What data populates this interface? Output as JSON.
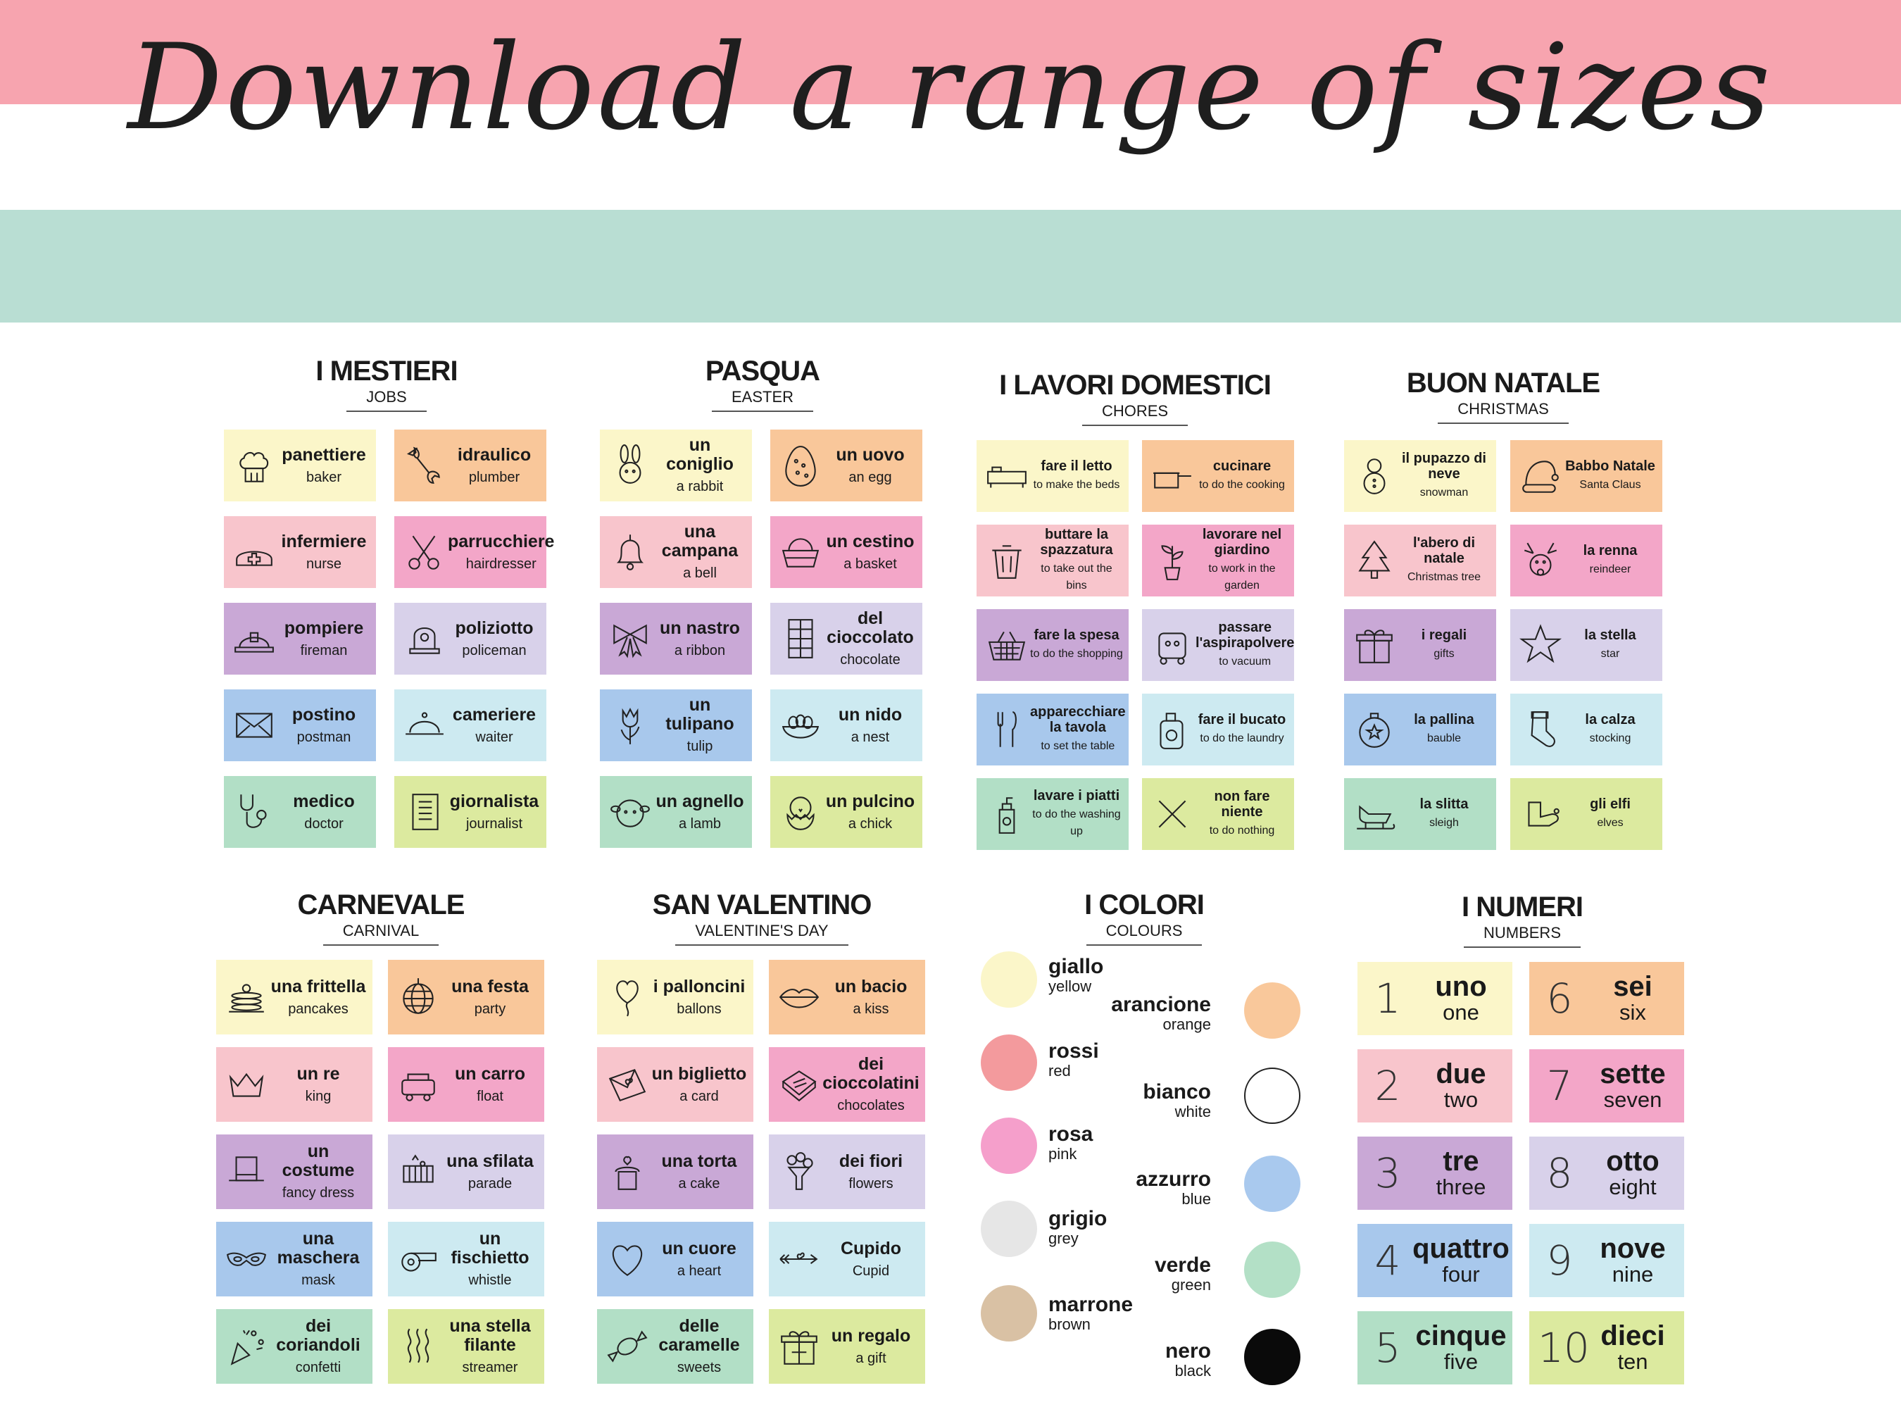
{
  "headline": "Download a range of sizes",
  "groups": {
    "mestieri": {
      "title": "I MESTIERI",
      "subtitle": "JOBS",
      "cards": [
        {
          "it": "panettiere",
          "en": "baker",
          "icon": "chef-hat-icon"
        },
        {
          "it": "idraulico",
          "en": "plumber",
          "icon": "wrench-icon"
        },
        {
          "it": "infermiere",
          "en": "nurse",
          "icon": "nurse-cap-icon"
        },
        {
          "it": "parrucchiere",
          "en": "hairdresser",
          "icon": "scissors-icon"
        },
        {
          "it": "pompiere",
          "en": "fireman",
          "icon": "fire-helmet-icon"
        },
        {
          "it": "poliziotto",
          "en": "policeman",
          "icon": "police-hat-icon"
        },
        {
          "it": "postino",
          "en": "postman",
          "icon": "envelope-icon"
        },
        {
          "it": "cameriere",
          "en": "waiter",
          "icon": "cloche-icon"
        },
        {
          "it": "medico",
          "en": "doctor",
          "icon": "stethoscope-icon"
        },
        {
          "it": "giornalista",
          "en": "journalist",
          "icon": "notebook-icon"
        }
      ]
    },
    "pasqua": {
      "title": "PASQUA",
      "subtitle": "EASTER",
      "cards": [
        {
          "it": "un coniglio",
          "en": "a rabbit",
          "icon": "rabbit-icon"
        },
        {
          "it": "un uovo",
          "en": "an egg",
          "icon": "egg-icon"
        },
        {
          "it": "una campana",
          "en": "a bell",
          "icon": "bell-icon"
        },
        {
          "it": "un cestino",
          "en": "a basket",
          "icon": "basket-icon"
        },
        {
          "it": "un nastro",
          "en": "a ribbon",
          "icon": "ribbon-icon"
        },
        {
          "it": "del cioccolato",
          "en": "chocolate",
          "icon": "chocolate-bar-icon"
        },
        {
          "it": "un tulipano",
          "en": "tulip",
          "icon": "tulip-icon"
        },
        {
          "it": "un nido",
          "en": "a nest",
          "icon": "nest-icon"
        },
        {
          "it": "un agnello",
          "en": "a lamb",
          "icon": "lamb-icon"
        },
        {
          "it": "un pulcino",
          "en": "a chick",
          "icon": "chick-icon"
        }
      ]
    },
    "lavori": {
      "title": "I LAVORI DOMESTICI",
      "subtitle": "CHORES",
      "cards": [
        {
          "it": "fare il letto",
          "en": "to make the beds",
          "icon": "bed-icon"
        },
        {
          "it": "cucinare",
          "en": "to do the cooking",
          "icon": "pan-icon"
        },
        {
          "it": "buttare la spazzatura",
          "en": "to take out the bins",
          "icon": "bin-icon"
        },
        {
          "it": "lavorare nel giardino",
          "en": "to work in the garden",
          "icon": "plant-icon"
        },
        {
          "it": "fare la spesa",
          "en": "to do the shopping",
          "icon": "shopping-basket-icon"
        },
        {
          "it": "passare l'aspirapolvere",
          "en": "to vacuum",
          "icon": "vacuum-icon"
        },
        {
          "it": "apparecchiare la tavola",
          "en": "to set the table",
          "icon": "cutlery-icon"
        },
        {
          "it": "fare il bucato",
          "en": "to do the laundry",
          "icon": "detergent-icon"
        },
        {
          "it": "lavare i piatti",
          "en": "to do the washing up",
          "icon": "soap-bottle-icon"
        },
        {
          "it": "non fare niente",
          "en": "to do nothing",
          "icon": "cross-icon"
        }
      ]
    },
    "natale": {
      "title": "BUON NATALE",
      "subtitle": "CHRISTMAS",
      "cards": [
        {
          "it": "il pupazzo di neve",
          "en": "snowman",
          "icon": "snowman-icon"
        },
        {
          "it": "Babbo Natale",
          "en": "Santa Claus",
          "icon": "santa-hat-icon"
        },
        {
          "it": "l'abero di natale",
          "en": "Christmas tree",
          "icon": "christmas-tree-icon"
        },
        {
          "it": "la renna",
          "en": "reindeer",
          "icon": "reindeer-icon"
        },
        {
          "it": "i regali",
          "en": "gifts",
          "icon": "gift-icon"
        },
        {
          "it": "la stella",
          "en": "star",
          "icon": "star-icon"
        },
        {
          "it": "la pallina",
          "en": "bauble",
          "icon": "bauble-icon"
        },
        {
          "it": "la calza",
          "en": "stocking",
          "icon": "stocking-icon"
        },
        {
          "it": "la slitta",
          "en": "sleigh",
          "icon": "sleigh-icon"
        },
        {
          "it": "gli elfi",
          "en": "elves",
          "icon": "elf-shoe-icon"
        }
      ]
    },
    "carnevale": {
      "title": "CARNEVALE",
      "subtitle": "CARNIVAL",
      "cards": [
        {
          "it": "una frittella",
          "en": "pancakes",
          "icon": "pancakes-icon"
        },
        {
          "it": "una festa",
          "en": "party",
          "icon": "disco-ball-icon"
        },
        {
          "it": "un re",
          "en": "king",
          "icon": "crown-icon"
        },
        {
          "it": "un carro",
          "en": "float",
          "icon": "float-cart-icon"
        },
        {
          "it": "un costume",
          "en": "fancy dress",
          "icon": "costume-hat-icon"
        },
        {
          "it": "una sfilata",
          "en": "parade",
          "icon": "parade-icon"
        },
        {
          "it": "una maschera",
          "en": "mask",
          "icon": "mask-icon"
        },
        {
          "it": "un fischietto",
          "en": "whistle",
          "icon": "whistle-icon"
        },
        {
          "it": "dei coriandoli",
          "en": "confetti",
          "icon": "confetti-icon"
        },
        {
          "it": "una stella filante",
          "en": "streamer",
          "icon": "streamer-icon"
        }
      ]
    },
    "valentino": {
      "title": "SAN VALENTINO",
      "subtitle": "VALENTINE'S DAY",
      "cards": [
        {
          "it": "i palloncini",
          "en": "ballons",
          "icon": "heart-balloon-icon"
        },
        {
          "it": "un bacio",
          "en": "a kiss",
          "icon": "lips-icon"
        },
        {
          "it": "un biglietto",
          "en": "a card",
          "icon": "love-letter-icon"
        },
        {
          "it": "dei cioccolatini",
          "en": "chocolates",
          "icon": "chocolates-icon"
        },
        {
          "it": "una torta",
          "en": "a cake",
          "icon": "cake-icon"
        },
        {
          "it": "dei fiori",
          "en": "flowers",
          "icon": "bouquet-icon"
        },
        {
          "it": "un cuore",
          "en": "a heart",
          "icon": "heart-icon"
        },
        {
          "it": "Cupido",
          "en": "Cupid",
          "icon": "arrow-icon"
        },
        {
          "it": "delle caramelle",
          "en": "sweets",
          "icon": "candy-icon"
        },
        {
          "it": "un regalo",
          "en": "a gift",
          "icon": "present-icon"
        }
      ]
    },
    "colori": {
      "title": "I COLORI",
      "subtitle": "COLOURS",
      "left": [
        {
          "it": "giallo",
          "en": "yellow",
          "color": "#fbf6c9"
        },
        {
          "it": "rossi",
          "en": "red",
          "color": "#f39a9d"
        },
        {
          "it": "rosa",
          "en": "pink",
          "color": "#f59fcb"
        },
        {
          "it": "grigio",
          "en": "grey",
          "color": "#e6e6e6"
        },
        {
          "it": "marrone",
          "en": "brown",
          "color": "#d9c1a4"
        }
      ],
      "right": [
        {
          "it": "arancione",
          "en": "orange",
          "color": "#f9c89b"
        },
        {
          "it": "bianco",
          "en": "white",
          "color": "#ffffff"
        },
        {
          "it": "azzurro",
          "en": "blue",
          "color": "#a9c9ee"
        },
        {
          "it": "verde",
          "en": "green",
          "color": "#b3e0c6"
        },
        {
          "it": "nero",
          "en": "black",
          "color": "#0a0a0a"
        }
      ]
    },
    "numeri": {
      "title": "I NUMERI",
      "subtitle": "NUMBERS",
      "cards": [
        {
          "n": "1",
          "it": "uno",
          "en": "one"
        },
        {
          "n": "6",
          "it": "sei",
          "en": "six"
        },
        {
          "n": "2",
          "it": "due",
          "en": "two"
        },
        {
          "n": "7",
          "it": "sette",
          "en": "seven"
        },
        {
          "n": "3",
          "it": "tre",
          "en": "three"
        },
        {
          "n": "8",
          "it": "otto",
          "en": "eight"
        },
        {
          "n": "4",
          "it": "quattro",
          "en": "four"
        },
        {
          "n": "9",
          "it": "nove",
          "en": "nine"
        },
        {
          "n": "5",
          "it": "cinque",
          "en": "five"
        },
        {
          "n": "10",
          "it": "dieci",
          "en": "ten"
        }
      ]
    }
  }
}
